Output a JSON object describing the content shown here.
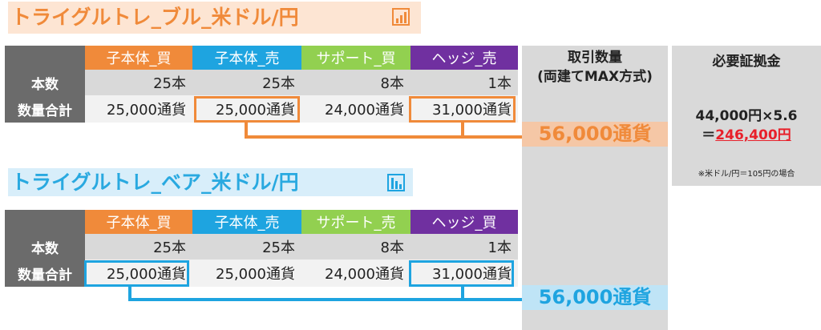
{
  "bull": {
    "title": "トライグルトレ_ブル_米ドル/円",
    "headers": [
      "子本体_買",
      "子本体_売",
      "サポート_買",
      "ヘッジ_売"
    ],
    "row1_label": "本数",
    "row1": [
      "25本",
      "25本",
      "8本",
      "1本"
    ],
    "row2_label": "数量合計",
    "row2": [
      "25,000通貨",
      "25,000通貨",
      "24,000通貨",
      "31,000通貨"
    ],
    "total": "56,000通貨"
  },
  "bear": {
    "title": "トライグルトレ_ベア_米ドル/円",
    "headers": [
      "子本体_買",
      "子本体_売",
      "サポート_売",
      "ヘッジ_買"
    ],
    "row1_label": "本数",
    "row1": [
      "25本",
      "25本",
      "8本",
      "1本"
    ],
    "row2_label": "数量合計",
    "row2": [
      "25,000通貨",
      "25,000通貨",
      "24,000通貨",
      "31,000通貨"
    ],
    "total": "56,000通貨"
  },
  "quantity_panel": {
    "line1": "取引数量",
    "line2": "(両建てMAX方式)"
  },
  "margin_panel": {
    "title": "必要証拠金",
    "formula": "44,000円×5.6",
    "equals": "＝",
    "result": "246,400円",
    "note": "※米ドル/円＝105円の場合"
  },
  "icons": [
    "bar-chart-rising-icon",
    "bar-chart-falling-icon"
  ],
  "colors": {
    "orange": "#f08a3a",
    "blue": "#1ea4e0",
    "green": "#92d050",
    "purple": "#7030a0",
    "result_red": "#e8202a"
  }
}
